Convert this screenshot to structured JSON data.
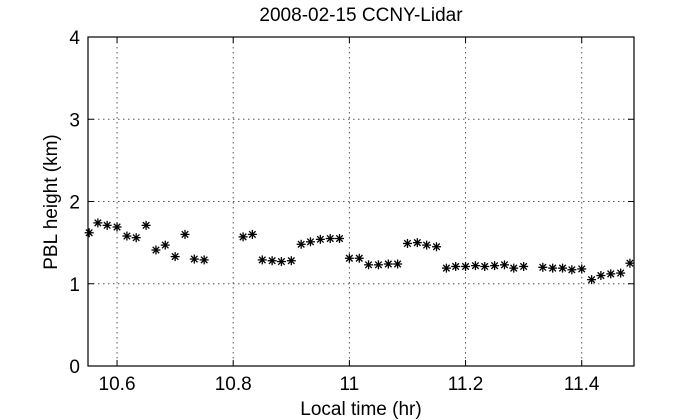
{
  "chart_data": {
    "type": "scatter",
    "title": "2008-02-15 CCNY-Lidar",
    "xlabel": "Local time (hr)",
    "ylabel": "PBL height (km)",
    "xlim": [
      10.55,
      11.49
    ],
    "ylim": [
      0,
      4
    ],
    "grid": true,
    "marker": "*",
    "marker_color": "#000000",
    "x_ticks": [
      10.6,
      10.8,
      11,
      11.2,
      11.4
    ],
    "x_tick_labels": [
      "10.6",
      "10.8",
      "11",
      "11.2",
      "11.4"
    ],
    "y_ticks": [
      0,
      1,
      2,
      3,
      4
    ],
    "y_tick_labels": [
      "0",
      "1",
      "2",
      "3",
      "4"
    ],
    "series": [
      {
        "points": [
          [
            10.552,
            1.62
          ],
          [
            10.567,
            1.74
          ],
          [
            10.583,
            1.71
          ],
          [
            10.6,
            1.69
          ],
          [
            10.617,
            1.58
          ],
          [
            10.633,
            1.56
          ],
          [
            10.65,
            1.71
          ],
          [
            10.667,
            1.41
          ],
          [
            10.683,
            1.47
          ],
          [
            10.7,
            1.33
          ],
          [
            10.717,
            1.6
          ],
          [
            10.733,
            1.3
          ],
          [
            10.75,
            1.29
          ],
          [
            10.817,
            1.57
          ],
          [
            10.833,
            1.6
          ],
          [
            10.85,
            1.29
          ],
          [
            10.867,
            1.28
          ],
          [
            10.883,
            1.27
          ],
          [
            10.9,
            1.28
          ],
          [
            10.917,
            1.48
          ],
          [
            10.933,
            1.51
          ],
          [
            10.95,
            1.54
          ],
          [
            10.967,
            1.55
          ],
          [
            10.983,
            1.55
          ],
          [
            11.0,
            1.31
          ],
          [
            11.017,
            1.31
          ],
          [
            11.033,
            1.23
          ],
          [
            11.05,
            1.23
          ],
          [
            11.067,
            1.24
          ],
          [
            11.083,
            1.24
          ],
          [
            11.1,
            1.49
          ],
          [
            11.117,
            1.5
          ],
          [
            11.133,
            1.47
          ],
          [
            11.15,
            1.45
          ],
          [
            11.167,
            1.19
          ],
          [
            11.183,
            1.21
          ],
          [
            11.2,
            1.21
          ],
          [
            11.217,
            1.22
          ],
          [
            11.233,
            1.21
          ],
          [
            11.25,
            1.22
          ],
          [
            11.267,
            1.23
          ],
          [
            11.283,
            1.19
          ],
          [
            11.3,
            1.21
          ],
          [
            11.333,
            1.2
          ],
          [
            11.35,
            1.19
          ],
          [
            11.367,
            1.19
          ],
          [
            11.383,
            1.17
          ],
          [
            11.4,
            1.18
          ],
          [
            11.417,
            1.05
          ],
          [
            11.433,
            1.1
          ],
          [
            11.45,
            1.12
          ],
          [
            11.467,
            1.13
          ],
          [
            11.483,
            1.25
          ]
        ]
      }
    ]
  }
}
